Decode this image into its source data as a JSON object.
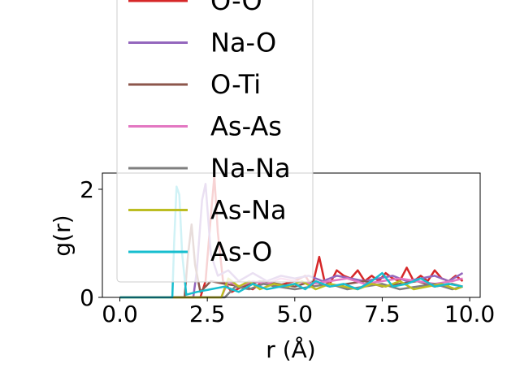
{
  "chart_data": {
    "type": "line",
    "xlabel": "r (Å)",
    "ylabel": "g(r)",
    "xlim": [
      -0.5,
      10.3
    ],
    "ylim": [
      0,
      2.3
    ],
    "x_ticks": [
      0.0,
      2.5,
      5.0,
      7.5,
      10.0
    ],
    "x_tick_labels": [
      "0.0",
      "2.5",
      "5.0",
      "7.5",
      "10.0"
    ],
    "y_ticks": [
      0,
      2
    ],
    "y_tick_labels": [
      "0",
      "2"
    ],
    "grid": false,
    "legend_placement": "upper-center",
    "legend": [
      {
        "name": "O-O",
        "color": "#d62728"
      },
      {
        "name": "Na-O",
        "color": "#9467bd"
      },
      {
        "name": "O-Ti",
        "color": "#8c564b"
      },
      {
        "name": "As-As",
        "color": "#e377c2"
      },
      {
        "name": "Na-Na",
        "color": "#7f7f7f"
      },
      {
        "name": "As-Na",
        "color": "#bcbd22"
      },
      {
        "name": "As-O",
        "color": "#17becf"
      }
    ],
    "series": [
      {
        "name": "O-O",
        "color": "#d62728",
        "x": [
          0.0,
          2.3,
          2.45,
          2.6,
          2.7,
          2.8,
          2.95,
          3.2,
          3.5,
          3.8,
          4.1,
          4.4,
          4.7,
          5.0,
          5.3,
          5.5,
          5.7,
          5.85,
          6.0,
          6.2,
          6.4,
          6.6,
          6.8,
          7.0,
          7.2,
          7.4,
          7.6,
          7.8,
          8.0,
          8.2,
          8.4,
          8.6,
          8.8,
          9.0,
          9.2,
          9.4,
          9.6,
          9.8
        ],
        "y": [
          0,
          0,
          0.3,
          1.5,
          2.25,
          1.2,
          0.3,
          0.1,
          0.2,
          0.15,
          0.3,
          0.2,
          0.25,
          0.3,
          0.4,
          0.2,
          0.75,
          0.3,
          0.25,
          0.5,
          0.4,
          0.35,
          0.5,
          0.3,
          0.4,
          0.3,
          0.45,
          0.35,
          0.3,
          0.55,
          0.3,
          0.4,
          0.3,
          0.5,
          0.35,
          0.3,
          0.4,
          0.3
        ]
      },
      {
        "name": "Na-O",
        "color": "#9467bd",
        "x": [
          0.0,
          2.1,
          2.2,
          2.35,
          2.45,
          2.6,
          2.8,
          3.1,
          3.4,
          3.8,
          4.2,
          4.6,
          5.0,
          5.4,
          5.8,
          6.2,
          6.6,
          7.0,
          7.4,
          7.8,
          8.2,
          8.6,
          9.0,
          9.4,
          9.8
        ],
        "y": [
          0,
          0,
          0.5,
          1.8,
          2.1,
          0.8,
          0.4,
          0.5,
          0.3,
          0.45,
          0.3,
          0.4,
          0.35,
          0.4,
          0.3,
          0.4,
          0.35,
          0.3,
          0.35,
          0.4,
          0.3,
          0.35,
          0.4,
          0.3,
          0.45
        ]
      },
      {
        "name": "O-Ti",
        "color": "#8c564b",
        "x": [
          0.0,
          1.85,
          1.95,
          2.05,
          2.15,
          2.3,
          2.6,
          3.0,
          3.5,
          4.0,
          4.5,
          5.0,
          5.5,
          6.0,
          6.5,
          7.0,
          7.5,
          8.0,
          8.5,
          9.0,
          9.5,
          9.8
        ],
        "y": [
          0,
          0,
          0.8,
          1.35,
          0.6,
          0.1,
          0.3,
          0.25,
          0.2,
          0.3,
          0.25,
          0.2,
          0.3,
          0.2,
          0.25,
          0.3,
          0.2,
          0.25,
          0.3,
          0.2,
          0.25,
          0.2
        ]
      },
      {
        "name": "As-As",
        "color": "#e377c2",
        "x": [
          0.0,
          2.9,
          3.1,
          3.4,
          3.8,
          4.2,
          4.6,
          5.0,
          5.5,
          6.0,
          6.5,
          7.0,
          7.5,
          8.0,
          8.5,
          9.0,
          9.5,
          9.8
        ],
        "y": [
          0,
          0,
          0.3,
          0.2,
          0.3,
          0.25,
          0.35,
          0.3,
          0.25,
          0.3,
          0.35,
          0.25,
          0.3,
          0.35,
          0.3,
          0.25,
          0.3,
          0.35
        ]
      },
      {
        "name": "Na-Na",
        "color": "#7f7f7f",
        "x": [
          0.0,
          3.0,
          3.3,
          3.7,
          4.1,
          4.5,
          5.0,
          5.5,
          6.0,
          6.5,
          7.0,
          7.5,
          8.0,
          8.5,
          9.0,
          9.5,
          9.8
        ],
        "y": [
          0,
          0,
          0.2,
          0.15,
          0.25,
          0.2,
          0.15,
          0.2,
          0.25,
          0.15,
          0.2,
          0.25,
          0.15,
          0.2,
          0.25,
          0.15,
          0.2
        ]
      },
      {
        "name": "As-Na",
        "color": "#bcbd22",
        "x": [
          0.0,
          2.9,
          3.1,
          3.4,
          3.7,
          4.0,
          4.4,
          4.8,
          5.2,
          5.6,
          6.0,
          6.4,
          6.8,
          7.2,
          7.6,
          8.0,
          8.4,
          8.8,
          9.2,
          9.6,
          9.8
        ],
        "y": [
          0,
          0,
          0.35,
          0.2,
          0.3,
          0.15,
          0.25,
          0.2,
          0.3,
          0.15,
          0.25,
          0.2,
          0.15,
          0.25,
          0.2,
          0.3,
          0.15,
          0.2,
          0.25,
          0.15,
          0.2
        ]
      },
      {
        "name": "As-O",
        "color": "#17becf",
        "x": [
          0.0,
          1.5,
          1.55,
          1.62,
          1.7,
          1.78,
          1.9,
          2.2,
          2.6,
          3.0,
          3.4,
          3.8,
          4.2,
          4.6,
          5.0,
          5.3,
          5.6,
          6.0,
          6.4,
          6.8,
          7.2,
          7.5,
          7.8,
          8.2,
          8.6,
          9.0,
          9.4,
          9.8
        ],
        "y": [
          0,
          0,
          1.0,
          2.05,
          1.9,
          0.8,
          0.05,
          0.1,
          0.15,
          0.2,
          0.1,
          0.25,
          0.15,
          0.2,
          0.25,
          0.15,
          0.3,
          0.2,
          0.25,
          0.15,
          0.3,
          0.45,
          0.2,
          0.25,
          0.35,
          0.2,
          0.25,
          0.2
        ]
      }
    ]
  }
}
